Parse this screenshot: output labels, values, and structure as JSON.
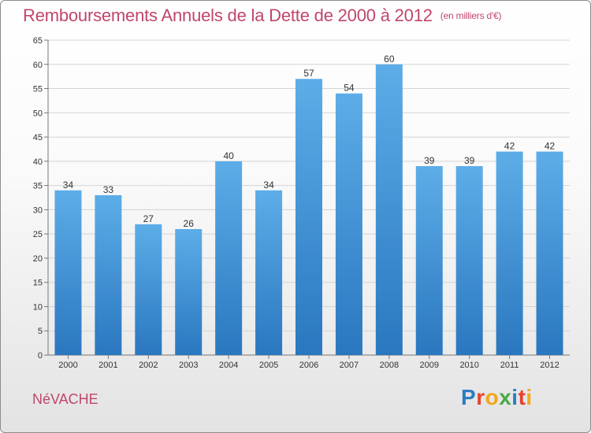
{
  "title": "Remboursements Annuels de la Dette de 2000 à 2012",
  "unit_note": "(en milliers d'€)",
  "commune": "NéVACHE",
  "logo": {
    "text": "Proxiti",
    "letters": [
      {
        "char": "P",
        "color": "#2a7dc4"
      },
      {
        "char": "r",
        "color": "#e8412c"
      },
      {
        "char": "o",
        "color": "#f2a71b"
      },
      {
        "char": "x",
        "color": "#4aa943"
      },
      {
        "char": "i",
        "color": "#2a7dc4"
      },
      {
        "char": "t",
        "color": "#e8412c"
      },
      {
        "char": "i",
        "color": "#f2a71b"
      }
    ]
  },
  "colors": {
    "accent": "#c0466a",
    "bar_top": "#5dade8",
    "bar_bottom": "#2a77bf"
  },
  "chart_data": {
    "type": "bar",
    "categories": [
      "2000",
      "2001",
      "2002",
      "2003",
      "2004",
      "2005",
      "2006",
      "2007",
      "2008",
      "2009",
      "2010",
      "2011",
      "2012"
    ],
    "values": [
      34,
      33,
      27,
      26,
      40,
      34,
      57,
      54,
      60,
      39,
      39,
      42,
      42
    ],
    "yticks": [
      0,
      5,
      10,
      15,
      20,
      25,
      30,
      35,
      40,
      45,
      50,
      55,
      60,
      65
    ],
    "ylim": [
      0,
      65
    ],
    "grid": true,
    "legend": "none"
  }
}
